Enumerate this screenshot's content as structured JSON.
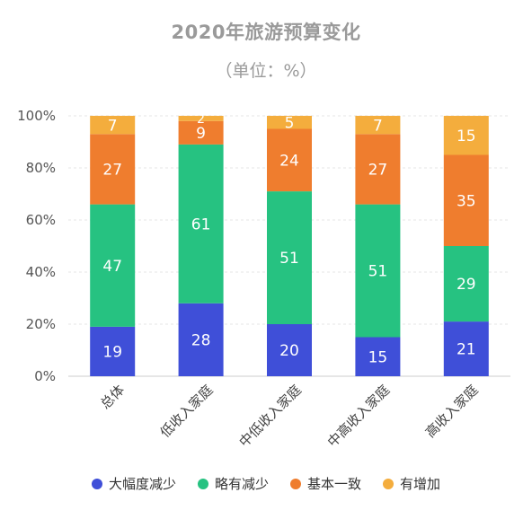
{
  "chart_data": {
    "type": "bar",
    "stacked": true,
    "title": "2020年旅游预算变化",
    "subtitle": "（单位：%）",
    "categories": [
      "总体",
      "低收入家庭",
      "中低收入家庭",
      "中高收入家庭",
      "高收入家庭"
    ],
    "series": [
      {
        "name": "大幅度减少",
        "color": "#3f4fd8",
        "values": [
          19,
          28,
          20,
          15,
          21
        ]
      },
      {
        "name": "略有减少",
        "color": "#26c281",
        "values": [
          47,
          61,
          51,
          51,
          29
        ]
      },
      {
        "name": "基本一致",
        "color": "#ef7d2e",
        "values": [
          27,
          9,
          24,
          27,
          35
        ]
      },
      {
        "name": "有增加",
        "color": "#f4ad3d",
        "values": [
          7,
          2,
          5,
          7,
          15
        ]
      }
    ],
    "ylim": [
      0,
      100
    ],
    "yticks": [
      0,
      20,
      40,
      60,
      80,
      100
    ],
    "ytick_labels": [
      "0%",
      "20%",
      "40%",
      "60%",
      "80%",
      "100%"
    ],
    "grid": true,
    "legend_position": "bottom"
  }
}
